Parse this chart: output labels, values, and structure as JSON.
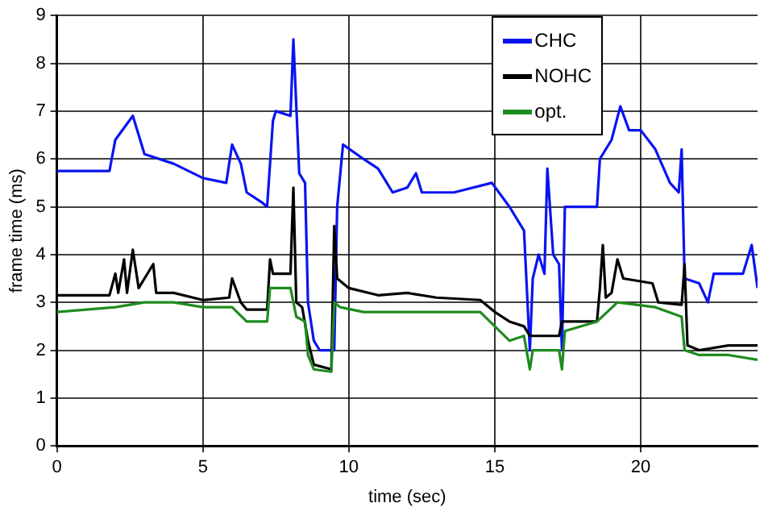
{
  "chart_data": {
    "type": "line",
    "xlabel": "time (sec)",
    "ylabel": "frame time (ms)",
    "xlim": [
      0,
      24
    ],
    "ylim": [
      0,
      9
    ],
    "xticks": [
      0,
      5,
      10,
      15,
      20
    ],
    "yticks": [
      0,
      1,
      2,
      3,
      4,
      5,
      6,
      7,
      8,
      9
    ],
    "grid": true,
    "legend": "top right",
    "marker": "none",
    "line_style": "solid",
    "series": [
      {
        "name": "CHC",
        "color": "#0a14f0",
        "x": [
          0,
          1.8,
          2.0,
          2.6,
          3,
          4,
          5,
          5.8,
          6.0,
          6.3,
          6.5,
          7.0,
          7.2,
          7.4,
          7.5,
          8.0,
          8.1,
          8.2,
          8.3,
          8.5,
          8.6,
          8.8,
          9.0,
          9.5,
          9.6,
          9.8,
          10.5,
          11,
          11.5,
          12,
          12.3,
          12.5,
          13.6,
          14.9,
          15.5,
          16.0,
          16.2,
          16.3,
          16.5,
          16.7,
          16.8,
          17.0,
          17.2,
          17.3,
          17.4,
          17.6,
          18.0,
          18.5,
          18.6,
          19.0,
          19.3,
          19.6,
          20,
          20.5,
          21.0,
          21.3,
          21.4,
          21.5,
          22,
          22.3,
          22.5,
          23.5,
          23.8,
          24
        ],
        "values": [
          5.75,
          5.75,
          6.4,
          6.9,
          6.1,
          5.9,
          5.6,
          5.5,
          6.3,
          5.9,
          5.3,
          5.1,
          5.0,
          6.8,
          7.0,
          6.9,
          8.5,
          7.1,
          5.7,
          5.5,
          3.0,
          2.2,
          2.0,
          2.0,
          5.0,
          6.3,
          6.0,
          5.8,
          5.3,
          5.4,
          5.7,
          5.3,
          5.3,
          5.5,
          5.0,
          4.5,
          2.0,
          3.5,
          4.0,
          3.6,
          5.8,
          4.0,
          3.8,
          2.0,
          5.0,
          5.0,
          5.0,
          5.0,
          6.0,
          6.4,
          7.1,
          6.6,
          6.6,
          6.2,
          5.5,
          5.3,
          6.2,
          3.5,
          3.4,
          3.0,
          3.6,
          3.6,
          4.2,
          3.3
        ]
      },
      {
        "name": "NOHC",
        "color": "#000000",
        "x": [
          0,
          1.8,
          2.0,
          2.1,
          2.3,
          2.4,
          2.6,
          2.8,
          3.3,
          3.4,
          4,
          5,
          5.9,
          6.0,
          6.3,
          6.5,
          7.2,
          7.3,
          7.4,
          8.0,
          8.1,
          8.2,
          8.4,
          8.6,
          8.8,
          9.4,
          9.5,
          9.6,
          10,
          11,
          12,
          13,
          14.5,
          15.0,
          15.5,
          16.0,
          16.2,
          17.2,
          17.3,
          18.5,
          18.6,
          18.7,
          18.8,
          19.0,
          19.2,
          19.4,
          20.4,
          20.6,
          21.4,
          21.5,
          21.6,
          22,
          23,
          24
        ],
        "values": [
          3.15,
          3.15,
          3.6,
          3.2,
          3.9,
          3.2,
          4.1,
          3.3,
          3.8,
          3.2,
          3.2,
          3.05,
          3.1,
          3.5,
          3.0,
          2.85,
          2.85,
          3.9,
          3.6,
          3.6,
          5.4,
          3.0,
          2.9,
          2.2,
          1.7,
          1.6,
          4.6,
          3.5,
          3.3,
          3.15,
          3.2,
          3.1,
          3.05,
          2.8,
          2.6,
          2.5,
          2.3,
          2.3,
          2.6,
          2.6,
          3.3,
          4.2,
          3.1,
          3.2,
          3.9,
          3.5,
          3.4,
          3.0,
          2.95,
          3.8,
          2.1,
          2.0,
          2.1,
          2.1
        ]
      },
      {
        "name": "opt.",
        "color": "#1e8c1e",
        "x": [
          0,
          2,
          3,
          4,
          5,
          6,
          6.5,
          7.2,
          7.3,
          8.0,
          8.2,
          8.5,
          8.6,
          8.8,
          9.4,
          9.5,
          9.7,
          10.5,
          12,
          14.5,
          15,
          15.5,
          16.0,
          16.2,
          16.3,
          17.2,
          17.3,
          17.4,
          18.5,
          19.2,
          20.5,
          21.4,
          21.5,
          22,
          23,
          24
        ],
        "values": [
          2.8,
          2.9,
          3.0,
          3.0,
          2.9,
          2.9,
          2.6,
          2.6,
          3.3,
          3.3,
          2.7,
          2.6,
          1.9,
          1.6,
          1.55,
          3.0,
          2.9,
          2.8,
          2.8,
          2.8,
          2.5,
          2.2,
          2.3,
          1.6,
          2.0,
          2.0,
          1.6,
          2.4,
          2.6,
          3.0,
          2.9,
          2.7,
          2.0,
          1.9,
          1.9,
          1.8
        ]
      }
    ]
  }
}
